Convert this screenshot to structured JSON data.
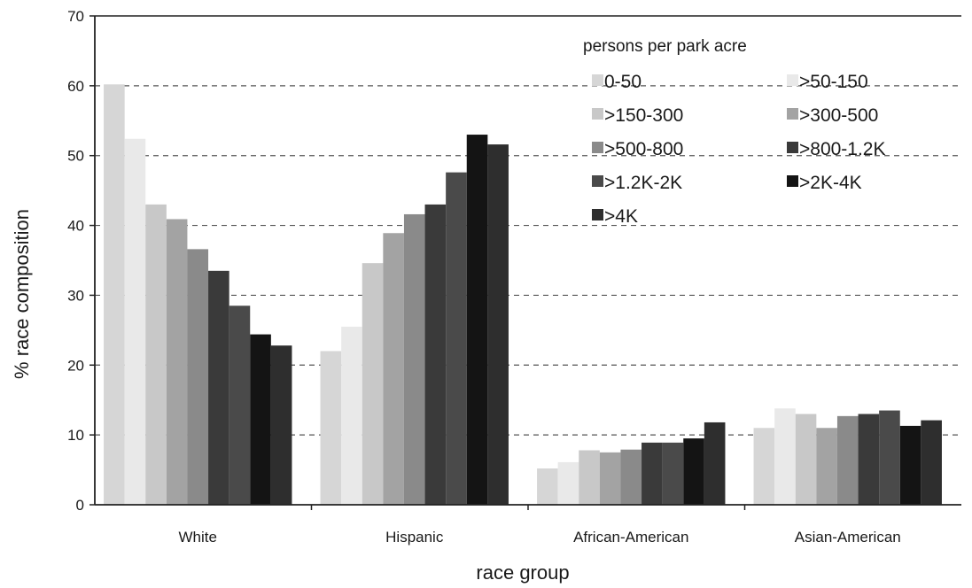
{
  "chart_data": {
    "type": "bar",
    "title": "",
    "xlabel": "race group",
    "ylabel": "% race composition",
    "ylim": [
      0,
      70
    ],
    "yticks": [
      0,
      10,
      20,
      30,
      40,
      50,
      60,
      70
    ],
    "grid": true,
    "legend_title": "persons per park acre",
    "legend_position": "top-right",
    "categories": [
      "White",
      "Hispanic",
      "African-American",
      "Asian-American"
    ],
    "series": [
      {
        "name": "0-50",
        "color": "#d6d6d6",
        "values": [
          60.2,
          22.0,
          5.2,
          11.0
        ]
      },
      {
        "name": ">50-150",
        "color": "#e9e9e9",
        "values": [
          52.4,
          25.5,
          6.1,
          13.8
        ]
      },
      {
        "name": ">150-300",
        "color": "#c8c8c8",
        "values": [
          43.0,
          34.6,
          7.8,
          13.0
        ]
      },
      {
        "name": ">300-500",
        "color": "#a3a3a3",
        "values": [
          40.9,
          38.9,
          7.5,
          11.0
        ]
      },
      {
        "name": ">500-800",
        "color": "#8a8a8a",
        "values": [
          36.6,
          41.6,
          7.9,
          12.7
        ]
      },
      {
        "name": ">800-1.2K",
        "color": "#3a3a3a",
        "values": [
          33.5,
          43.0,
          8.9,
          13.0
        ]
      },
      {
        "name": ">1.2K-2K",
        "color": "#4a4a4a",
        "values": [
          28.5,
          47.6,
          8.9,
          13.5
        ]
      },
      {
        "name": ">2K-4K",
        "color": "#141414",
        "values": [
          24.4,
          53.0,
          9.5,
          11.3
        ]
      },
      {
        "name": ">4K",
        "color": "#2e2e2e",
        "values": [
          22.8,
          51.6,
          11.8,
          12.1
        ]
      }
    ]
  }
}
